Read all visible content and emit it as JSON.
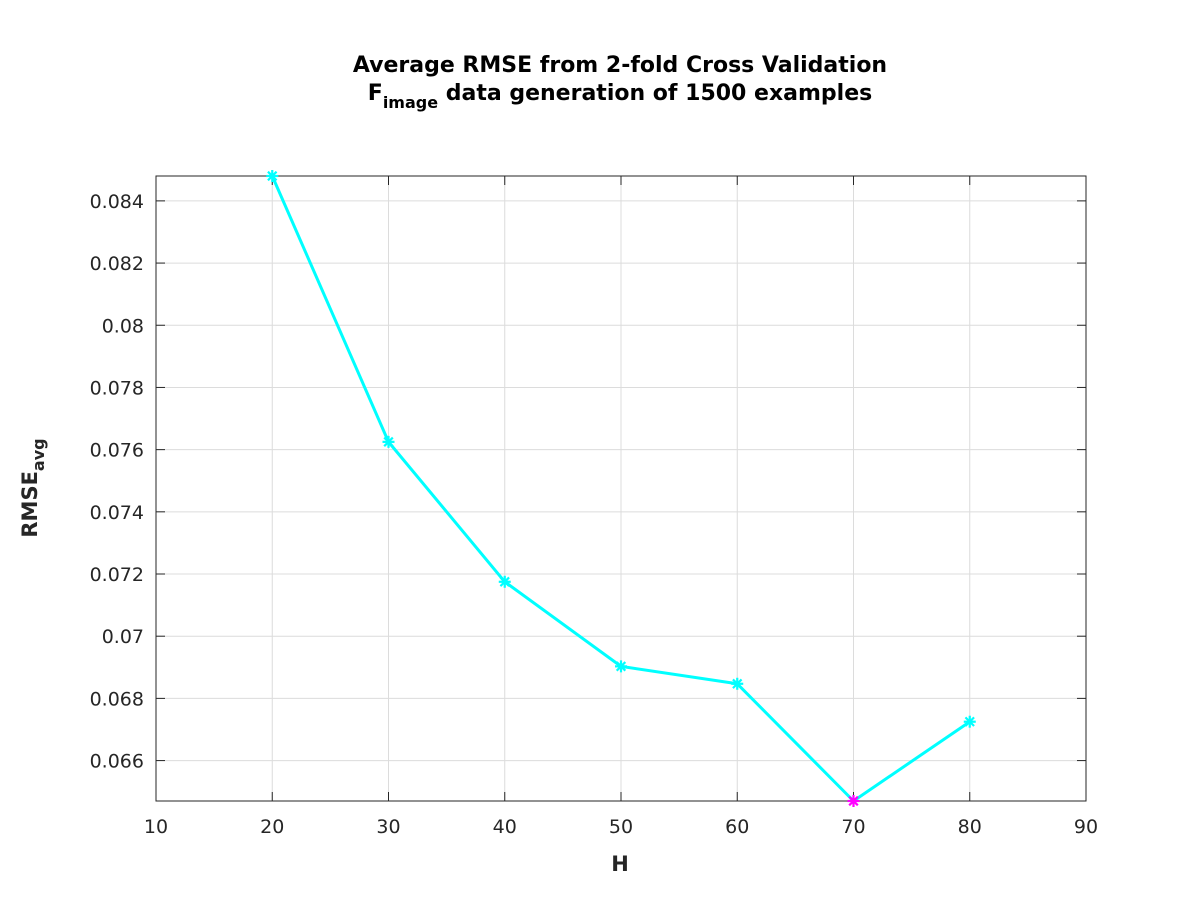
{
  "chart_data": {
    "type": "line",
    "title_line1": "Average RMSE from 2-fold Cross Validation",
    "title_line2_main": "F",
    "title_line2_sub": "image",
    "title_line2_rest": " data generation of 1500 examples",
    "xlabel": "H",
    "ylabel_main": "RMSE",
    "ylabel_sub": "avg",
    "xlim": [
      10,
      90
    ],
    "ylim": [
      0.0647,
      0.0848
    ],
    "xticks": [
      10,
      20,
      30,
      40,
      50,
      60,
      70,
      80,
      90
    ],
    "xtick_labels": [
      "10",
      "20",
      "30",
      "40",
      "50",
      "60",
      "70",
      "80",
      "90"
    ],
    "yticks": [
      0.066,
      0.068,
      0.07,
      0.072,
      0.074,
      0.076,
      0.078,
      0.08,
      0.082,
      0.084
    ],
    "ytick_labels": [
      "0.066",
      "0.068",
      "0.07",
      "0.072",
      "0.074",
      "0.076",
      "0.078",
      "0.08",
      "0.082",
      "0.084"
    ],
    "grid": true,
    "x": [
      20,
      30,
      40,
      50,
      60,
      70,
      80
    ],
    "y": [
      0.0848,
      0.07625,
      0.07175,
      0.06903,
      0.06847,
      0.0647,
      0.06725
    ],
    "series_color": "#00ffff",
    "highlight_index": 5,
    "highlight_color": "#ff00ff",
    "marker": "asterisk"
  }
}
